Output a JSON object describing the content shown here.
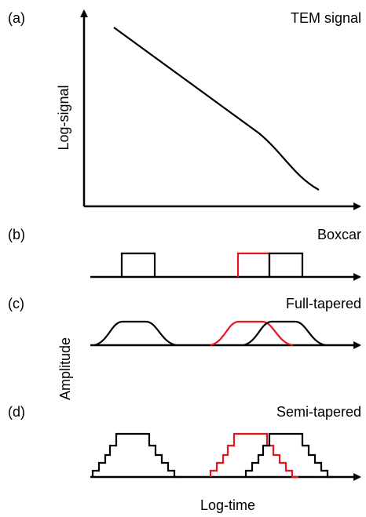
{
  "panels": [
    {
      "label": "(a)",
      "title": "TEM signal"
    },
    {
      "label": "(b)",
      "title": "Boxcar"
    },
    {
      "label": "(c)",
      "title": "Full-tapered"
    },
    {
      "label": "(d)",
      "title": "Semi-tapered"
    }
  ],
  "axes": {
    "signal": "Log-signal",
    "amplitude": "Amplitude",
    "time": "Log-time"
  }
}
